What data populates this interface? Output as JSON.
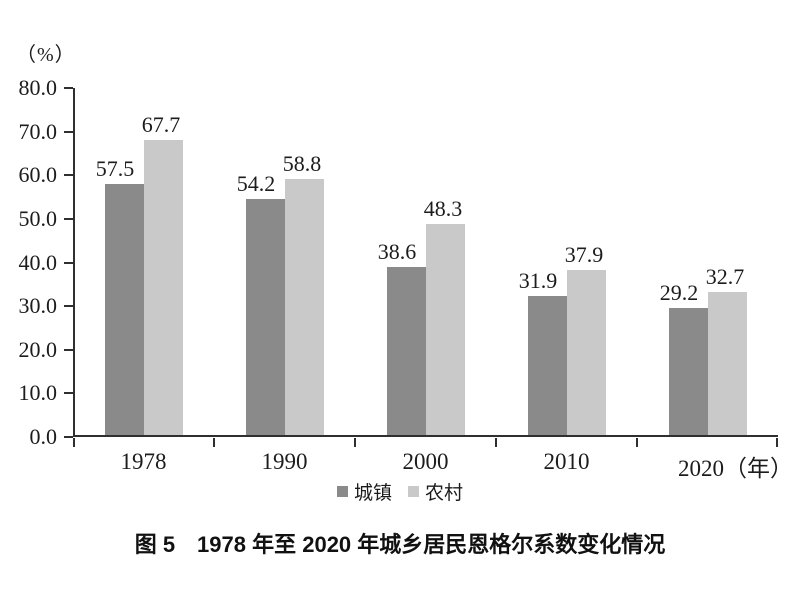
{
  "chart_data": {
    "type": "bar",
    "title": "",
    "ylabel": "（%）",
    "xlabel": "",
    "categories": [
      "1978",
      "1990",
      "2000",
      "2010",
      "2020"
    ],
    "x_axis_suffix": "（年）",
    "series": [
      {
        "name": "城镇",
        "color": "#8a8a8a",
        "values": [
          57.5,
          54.2,
          38.6,
          31.9,
          29.2
        ]
      },
      {
        "name": "农村",
        "color": "#c9c9c9",
        "values": [
          67.7,
          58.8,
          48.3,
          37.9,
          32.7
        ]
      }
    ],
    "ylim": [
      0,
      80
    ],
    "ytick_step": 10,
    "ytick_labels": [
      "0.0",
      "10.0",
      "20.0",
      "30.0",
      "40.0",
      "50.0",
      "60.0",
      "70.0",
      "80.0"
    ],
    "grid": false,
    "legend_position": "bottom",
    "value_labels": true
  },
  "caption": {
    "text": "图 5　1978 年至 2020 年城乡居民恩格尔系数变化情况"
  },
  "colors": {
    "axis": "#2f2f2f",
    "text": "#1c1c1c",
    "background": "#ffffff"
  }
}
